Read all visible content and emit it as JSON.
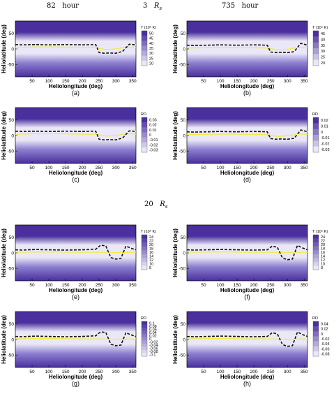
{
  "headers": {
    "time_left": {
      "num": "82",
      "unit": "hour"
    },
    "radius_top": {
      "num": "3",
      "sym": "R",
      "sub": "s"
    },
    "time_right": {
      "num": "735",
      "unit": "hour"
    },
    "radius_mid": {
      "num": "20",
      "sym": "R",
      "sub": "s"
    }
  },
  "colors": {
    "deep": "#4a2f9e",
    "light": "#eae8f7",
    "neutral_line": "#f5ea44",
    "hcs": "#111111"
  },
  "chart_data": [
    {
      "type": "heatmap",
      "panel": "(a)",
      "xlabel": "Heliolongitude (deg)",
      "ylabel": "Heliolatitude (deg)",
      "xlim": [
        0,
        360
      ],
      "ylim": [
        -90,
        90
      ],
      "x_ticks": [
        50,
        100,
        150,
        200,
        250,
        300,
        350
      ],
      "y_ticks": [
        -50,
        0,
        50
      ],
      "colorbar_title": "T (10⁵ K)",
      "colorbar_ticks": [
        "50",
        "45",
        "40",
        "35",
        "30",
        "25",
        "20"
      ],
      "hcs_line": {
        "x": [
          0,
          20,
          60,
          100,
          150,
          200,
          240,
          250,
          265,
          280,
          300,
          320,
          340,
          360
        ],
        "y": [
          14,
          13,
          14,
          13,
          14,
          13,
          14,
          -12,
          -14,
          -13,
          -14,
          -8,
          15,
          13
        ]
      },
      "neutral_line": {
        "x": [
          0,
          60,
          120,
          180,
          240,
          270,
          300,
          330,
          360
        ],
        "y": [
          4,
          6,
          6,
          5,
          4,
          -2,
          0,
          6,
          5
        ]
      }
    },
    {
      "type": "heatmap",
      "panel": "(b)",
      "xlabel": "Heliolongitude (deg)",
      "ylabel": "Heliolatitude (deg)",
      "xlim": [
        0,
        360
      ],
      "ylim": [
        -90,
        90
      ],
      "x_ticks": [
        50,
        100,
        150,
        200,
        250,
        300,
        350
      ],
      "y_ticks": [
        -50,
        0,
        50
      ],
      "colorbar_title": "T (10⁵ K)",
      "colorbar_ticks": [
        "45",
        "40",
        "35",
        "30",
        "25",
        "20"
      ],
      "hcs_line": {
        "x": [
          0,
          20,
          60,
          100,
          150,
          200,
          240,
          250,
          265,
          280,
          300,
          320,
          340,
          360
        ],
        "y": [
          12,
          11,
          12,
          13,
          12,
          13,
          12,
          -10,
          -12,
          -11,
          -12,
          -9,
          18,
          12
        ]
      },
      "neutral_line": {
        "x": [
          0,
          60,
          120,
          180,
          240,
          270,
          300,
          330,
          360
        ],
        "y": [
          3,
          4,
          5,
          4,
          3,
          -3,
          -1,
          5,
          4
        ]
      }
    },
    {
      "type": "heatmap",
      "panel": "(c)",
      "xlabel": "Heliolongitude (deg)",
      "ylabel": "Heliolatitude (deg)",
      "xlim": [
        0,
        360
      ],
      "ylim": [
        -90,
        90
      ],
      "x_ticks": [
        50,
        100,
        150,
        200,
        250,
        300,
        350
      ],
      "y_ticks": [
        -50,
        0,
        50
      ],
      "colorbar_title": "RD",
      "colorbar_ticks": [
        "0.03",
        "0.02",
        "0.01",
        "0",
        "-0.01",
        "-0.02",
        "-0.03"
      ],
      "hcs_line": {
        "x": [
          0,
          20,
          60,
          100,
          150,
          200,
          240,
          250,
          265,
          280,
          300,
          320,
          340,
          360
        ],
        "y": [
          14,
          13,
          14,
          13,
          14,
          13,
          14,
          -12,
          -14,
          -13,
          -14,
          -8,
          15,
          13
        ]
      },
      "neutral_line": {
        "x": [
          0,
          60,
          120,
          180,
          240,
          270,
          300,
          330,
          360
        ],
        "y": [
          4,
          6,
          6,
          5,
          4,
          -2,
          0,
          6,
          5
        ]
      }
    },
    {
      "type": "heatmap",
      "panel": "(d)",
      "xlabel": "Heliolongitude (deg)",
      "ylabel": "Heliolatitude (deg)",
      "xlim": [
        0,
        360
      ],
      "ylim": [
        -90,
        90
      ],
      "x_ticks": [
        50,
        100,
        150,
        200,
        250,
        300,
        350
      ],
      "y_ticks": [
        -50,
        0,
        50
      ],
      "colorbar_title": "RD",
      "colorbar_ticks": [
        "0.02",
        "0.01",
        "0",
        "-0.01",
        "-0.02",
        "-0.03"
      ],
      "hcs_line": {
        "x": [
          0,
          20,
          60,
          100,
          150,
          200,
          240,
          250,
          265,
          280,
          300,
          320,
          340,
          360
        ],
        "y": [
          12,
          11,
          12,
          13,
          12,
          13,
          12,
          -10,
          -12,
          -11,
          -12,
          -9,
          18,
          12
        ]
      },
      "neutral_line": {
        "x": [
          0,
          60,
          120,
          180,
          240,
          270,
          300,
          330,
          360
        ],
        "y": [
          3,
          4,
          5,
          4,
          3,
          -3,
          -1,
          5,
          4
        ]
      }
    },
    {
      "type": "heatmap",
      "panel": "(e)",
      "xlabel": "Heliolongitude (deg)",
      "ylabel": "Heliolatitude (deg)",
      "xlim": [
        0,
        360
      ],
      "ylim": [
        -90,
        90
      ],
      "x_ticks": [
        50,
        100,
        150,
        200,
        250,
        300,
        350
      ],
      "y_ticks": [
        -50,
        0,
        50
      ],
      "colorbar_title": "T (10⁵ K)",
      "colorbar_ticks": [
        "24",
        "22",
        "20",
        "18",
        "16",
        "14",
        "12",
        "10",
        "8"
      ],
      "hcs_line": {
        "x": [
          0,
          20,
          60,
          100,
          150,
          200,
          240,
          255,
          270,
          285,
          300,
          315,
          330,
          345,
          360
        ],
        "y": [
          10,
          9,
          11,
          10,
          9,
          10,
          12,
          25,
          22,
          -15,
          -20,
          -18,
          22,
          15,
          10
        ]
      },
      "neutral_line": {
        "x": [
          0,
          60,
          120,
          180,
          240,
          300,
          360
        ],
        "y": [
          2,
          3,
          3,
          2,
          2,
          1,
          2
        ]
      }
    },
    {
      "type": "heatmap",
      "panel": "(f)",
      "xlabel": "Heliolongitude (deg)",
      "ylabel": "Heliolatitude (deg)",
      "xlim": [
        0,
        360
      ],
      "ylim": [
        -90,
        90
      ],
      "x_ticks": [
        50,
        100,
        150,
        200,
        250,
        300,
        350
      ],
      "y_ticks": [
        -50,
        0,
        50
      ],
      "colorbar_title": "T (10⁵ K)",
      "colorbar_ticks": [
        "24",
        "22",
        "20",
        "18",
        "16",
        "14",
        "12",
        "10",
        "8"
      ],
      "hcs_line": {
        "x": [
          0,
          20,
          60,
          100,
          150,
          200,
          240,
          255,
          270,
          285,
          300,
          315,
          330,
          345,
          360
        ],
        "y": [
          10,
          9,
          10,
          11,
          10,
          9,
          10,
          22,
          18,
          -16,
          -22,
          -20,
          24,
          16,
          10
        ]
      },
      "neutral_line": {
        "x": [
          0,
          60,
          120,
          180,
          240,
          300,
          360
        ],
        "y": [
          2,
          3,
          3,
          2,
          2,
          1,
          2
        ]
      }
    },
    {
      "type": "heatmap",
      "panel": "(g)",
      "xlabel": "Heliolongitude (deg)",
      "ylabel": "Heliolatitude (deg)",
      "xlim": [
        0,
        360
      ],
      "ylim": [
        -90,
        90
      ],
      "x_ticks": [
        50,
        100,
        150,
        200,
        250,
        300,
        350
      ],
      "y_ticks": [
        -50,
        0,
        50
      ],
      "colorbar_title": "RD",
      "colorbar_ticks": [
        "0.1",
        "0.08",
        "0.06",
        "0.04",
        "0.02",
        "0",
        "-0.02",
        "-0.04",
        "-0.06",
        "-0.08",
        "-0.1"
      ],
      "hcs_line": {
        "x": [
          0,
          20,
          60,
          100,
          150,
          200,
          240,
          255,
          270,
          285,
          300,
          315,
          330,
          345,
          360
        ],
        "y": [
          10,
          9,
          11,
          10,
          9,
          10,
          12,
          25,
          22,
          -15,
          -20,
          -18,
          22,
          15,
          10
        ]
      },
      "neutral_line": {
        "x": [
          0,
          60,
          120,
          180,
          240,
          300,
          360
        ],
        "y": [
          2,
          3,
          3,
          2,
          2,
          1,
          2
        ]
      }
    },
    {
      "type": "heatmap",
      "panel": "(h)",
      "xlabel": "Heliolongitude (deg)",
      "ylabel": "Heliolatitude (deg)",
      "xlim": [
        0,
        360
      ],
      "ylim": [
        -90,
        90
      ],
      "x_ticks": [
        50,
        100,
        150,
        200,
        250,
        300,
        350
      ],
      "y_ticks": [
        -50,
        0,
        50
      ],
      "colorbar_title": "RD",
      "colorbar_ticks": [
        "0.04",
        "0.02",
        "0",
        "-0.02",
        "-0.04",
        "-0.06",
        "-0.08"
      ],
      "hcs_line": {
        "x": [
          0,
          20,
          60,
          100,
          150,
          200,
          240,
          255,
          270,
          285,
          300,
          315,
          330,
          345,
          360
        ],
        "y": [
          10,
          9,
          10,
          11,
          10,
          9,
          10,
          22,
          18,
          -16,
          -22,
          -20,
          24,
          16,
          10
        ]
      },
      "neutral_line": {
        "x": [
          0,
          60,
          120,
          180,
          240,
          300,
          360
        ],
        "y": [
          2,
          3,
          3,
          2,
          2,
          1,
          2
        ]
      }
    }
  ]
}
